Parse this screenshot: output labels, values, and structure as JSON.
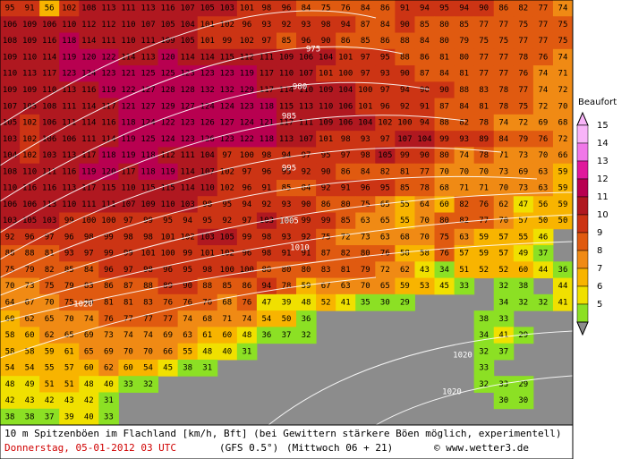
{
  "map": {
    "rows": [
      [
        95,
        91,
        56,
        102,
        108,
        113,
        111,
        113,
        116,
        107,
        105,
        103,
        101,
        98,
        96,
        84,
        75,
        76,
        84,
        86,
        91,
        94,
        95,
        94,
        90,
        86,
        82,
        77,
        74
      ],
      [
        106,
        109,
        106,
        110,
        112,
        112,
        110,
        107,
        105,
        104,
        101,
        102,
        96,
        93,
        92,
        93,
        98,
        94,
        87,
        84,
        90,
        85,
        80,
        85,
        77,
        77,
        75,
        77,
        75
      ],
      [
        108,
        109,
        116,
        118,
        114,
        111,
        110,
        111,
        109,
        105,
        101,
        99,
        102,
        97,
        85,
        96,
        90,
        86,
        85,
        86,
        88,
        84,
        80,
        79,
        75,
        75,
        77,
        77,
        75
      ],
      [
        109,
        110,
        114,
        119,
        120,
        122,
        114,
        113,
        120,
        114,
        114,
        115,
        112,
        111,
        109,
        106,
        104,
        101,
        97,
        95,
        88,
        86,
        81,
        80,
        77,
        77,
        78,
        76,
        74
      ],
      [
        110,
        113,
        117,
        123,
        124,
        123,
        121,
        125,
        125,
        123,
        123,
        123,
        119,
        117,
        110,
        107,
        101,
        100,
        97,
        93,
        90,
        87,
        84,
        81,
        77,
        77,
        76,
        74,
        71
      ],
      [
        109,
        109,
        110,
        113,
        116,
        119,
        122,
        127,
        128,
        128,
        132,
        132,
        129,
        117,
        114,
        110,
        109,
        104,
        100,
        97,
        94,
        90,
        90,
        88,
        83,
        78,
        77,
        74,
        72
      ],
      [
        107,
        105,
        108,
        111,
        114,
        117,
        121,
        127,
        129,
        127,
        124,
        124,
        123,
        118,
        115,
        113,
        110,
        106,
        101,
        96,
        92,
        91,
        87,
        84,
        81,
        78,
        75,
        72,
        70
      ],
      [
        105,
        102,
        106,
        111,
        114,
        116,
        118,
        124,
        122,
        123,
        126,
        127,
        124,
        121,
        117,
        111,
        109,
        106,
        104,
        102,
        100,
        94,
        88,
        82,
        78,
        74,
        72,
        69,
        68
      ],
      [
        103,
        102,
        106,
        106,
        111,
        114,
        119,
        125,
        124,
        123,
        126,
        123,
        122,
        118,
        113,
        107,
        101,
        98,
        93,
        97,
        107,
        104,
        99,
        93,
        89,
        84,
        79,
        76,
        72
      ],
      [
        104,
        102,
        103,
        113,
        117,
        118,
        119,
        118,
        112,
        111,
        104,
        97,
        100,
        98,
        94,
        97,
        95,
        97,
        98,
        105,
        99,
        90,
        80,
        74,
        78,
        71,
        73,
        70,
        66
      ],
      [
        108,
        110,
        111,
        116,
        119,
        120,
        117,
        118,
        119,
        114,
        107,
        102,
        97,
        96,
        95,
        92,
        90,
        86,
        84,
        82,
        81,
        77,
        70,
        70,
        70,
        73,
        69,
        63,
        59
      ],
      [
        110,
        116,
        116,
        113,
        117,
        115,
        110,
        115,
        115,
        114,
        110,
        102,
        96,
        91,
        85,
        84,
        92,
        91,
        96,
        95,
        85,
        78,
        68,
        71,
        71,
        70,
        73,
        63,
        59
      ],
      [
        106,
        106,
        113,
        110,
        111,
        111,
        107,
        109,
        110,
        103,
        98,
        95,
        94,
        92,
        93,
        90,
        86,
        80,
        75,
        65,
        55,
        64,
        60,
        82,
        76,
        62,
        47,
        56,
        59
      ],
      [
        103,
        105,
        103,
        99,
        100,
        100,
        97,
        99,
        95,
        94,
        95,
        92,
        97,
        103,
        100,
        99,
        99,
        85,
        63,
        65,
        55,
        70,
        80,
        82,
        77,
        70,
        57,
        50,
        50
      ],
      [
        92,
        96,
        97,
        96,
        98,
        99,
        98,
        98,
        101,
        102,
        103,
        105,
        99,
        98,
        93,
        92,
        75,
        72,
        73,
        63,
        68,
        70,
        75,
        63,
        59,
        57,
        55,
        46,
        null
      ],
      [
        88,
        88,
        81,
        93,
        97,
        99,
        99,
        101,
        100,
        99,
        101,
        102,
        96,
        98,
        91,
        91,
        87,
        82,
        80,
        76,
        58,
        58,
        76,
        57,
        59,
        57,
        49,
        37,
        null
      ],
      [
        75,
        79,
        82,
        85,
        84,
        96,
        97,
        98,
        96,
        95,
        98,
        100,
        100,
        88,
        80,
        80,
        83,
        81,
        79,
        72,
        62,
        43,
        34,
        51,
        52,
        52,
        60,
        44,
        36
      ],
      [
        70,
        73,
        75,
        79,
        83,
        86,
        87,
        88,
        89,
        90,
        88,
        85,
        86,
        94,
        78,
        59,
        67,
        63,
        70,
        65,
        59,
        53,
        45,
        33,
        null,
        32,
        38,
        null,
        44
      ],
      [
        64,
        67,
        70,
        75,
        80,
        81,
        81,
        83,
        76,
        76,
        76,
        68,
        76,
        47,
        39,
        48,
        52,
        41,
        35,
        30,
        29,
        null,
        null,
        null,
        null,
        34,
        32,
        32,
        41
      ],
      [
        60,
        62,
        65,
        70,
        74,
        76,
        77,
        77,
        77,
        74,
        68,
        71,
        74,
        54,
        50,
        36,
        null,
        null,
        null,
        null,
        null,
        null,
        null,
        null,
        38,
        33,
        null,
        null,
        null
      ],
      [
        58,
        60,
        62,
        65,
        69,
        73,
        74,
        74,
        69,
        63,
        61,
        60,
        48,
        36,
        37,
        32,
        null,
        null,
        null,
        null,
        null,
        null,
        null,
        null,
        34,
        41,
        29,
        null,
        null
      ],
      [
        58,
        58,
        59,
        61,
        65,
        69,
        70,
        70,
        66,
        55,
        48,
        40,
        31,
        null,
        null,
        null,
        null,
        null,
        null,
        null,
        null,
        null,
        null,
        null,
        32,
        37,
        null,
        null,
        null
      ],
      [
        54,
        54,
        55,
        57,
        60,
        62,
        60,
        54,
        45,
        38,
        31,
        null,
        null,
        null,
        null,
        null,
        null,
        null,
        null,
        null,
        null,
        null,
        null,
        null,
        33,
        null,
        null,
        null,
        null
      ],
      [
        48,
        49,
        51,
        51,
        48,
        40,
        33,
        32,
        null,
        null,
        null,
        null,
        null,
        null,
        null,
        null,
        null,
        null,
        null,
        null,
        null,
        null,
        null,
        null,
        32,
        33,
        29,
        null,
        null
      ],
      [
        42,
        43,
        42,
        43,
        42,
        31,
        null,
        null,
        null,
        null,
        null,
        null,
        null,
        null,
        null,
        null,
        null,
        null,
        null,
        null,
        null,
        null,
        null,
        null,
        null,
        30,
        30,
        null,
        null
      ],
      [
        38,
        38,
        37,
        39,
        40,
        33,
        null,
        null,
        null,
        null,
        null,
        null,
        null,
        null,
        null,
        null,
        null,
        null,
        null,
        null,
        null,
        null,
        null,
        null,
        null,
        null,
        null,
        null,
        null
      ]
    ],
    "isobars": [
      {
        "label": "975"
      },
      {
        "label": "980"
      },
      {
        "label": "985"
      },
      {
        "label": "995"
      },
      {
        "label": "1005"
      },
      {
        "label": "1010"
      },
      {
        "label": "1020"
      },
      {
        "label": "1020"
      },
      {
        "label": "1020"
      }
    ]
  },
  "legend": {
    "title": "Beaufort",
    "levels": [
      {
        "value": 15,
        "color": "#f8b4f8"
      },
      {
        "value": 14,
        "color": "#f078e8"
      },
      {
        "value": 13,
        "color": "#e0189c"
      },
      {
        "value": 12,
        "color": "#b80050"
      },
      {
        "value": 11,
        "color": "#b01820"
      },
      {
        "value": 10,
        "color": "#cc3414"
      },
      {
        "value": 9,
        "color": "#e05a10"
      },
      {
        "value": 8,
        "color": "#f08a14"
      },
      {
        "value": 7,
        "color": "#f8b400"
      },
      {
        "value": 6,
        "color": "#f0e000"
      },
      {
        "value": 5,
        "color": "#8ce024"
      }
    ]
  },
  "footer": {
    "line1": "10 m Spitzenböen im Flachland [km/h, Bft] (bei Gewittern stärkere Böen möglich, experimentell)",
    "date": "Donnerstag, 05-01-2012  03 UTC",
    "model": "(GFS 0.5°)",
    "run": "(Mittwoch 06 + 21)",
    "source": "© www.wetter3.de"
  }
}
